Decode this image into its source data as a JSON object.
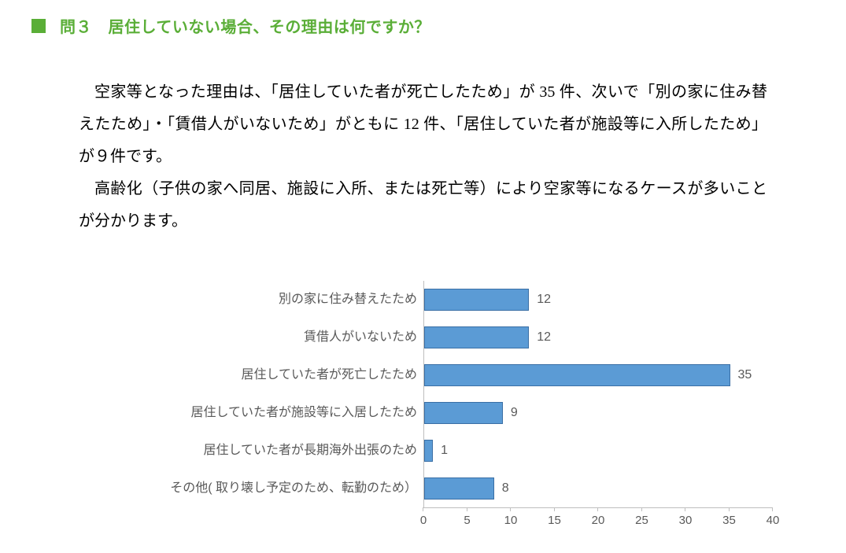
{
  "accent_color": "#5aae37",
  "heading": {
    "square_color": "#5aae37",
    "question_no": "問３",
    "question_text": "居住していない場合、その理由は何ですか？"
  },
  "body": {
    "p1": "空家等となった理由は、「居住していた者が死亡したため」が 35 件、次いで「別の家に住み替えたため」・「賃借人がいないため」がともに 12 件、「居住していた者が施設等に入所したため」が９件です。",
    "p2": "高齢化（子供の家へ同居、施設に入所、または死亡等）により空家等になるケースが多いことが分かります。"
  },
  "chart": {
    "type": "bar-horizontal",
    "x_min": 0,
    "x_max": 40,
    "x_tick_step": 5,
    "x_ticks": [
      0,
      5,
      10,
      15,
      20,
      25,
      30,
      35,
      40
    ],
    "bar_fill": "#5b9bd5",
    "bar_border": "#3a6fa5",
    "axis_color": "#bfbfbf",
    "label_color": "#595959",
    "label_fontsize": 16,
    "tick_fontsize": 15,
    "items": [
      {
        "label": "別の家に住み替えたため",
        "value": 12
      },
      {
        "label": "賃借人がいないため",
        "value": 12
      },
      {
        "label": "居住していた者が死亡したため",
        "value": 35
      },
      {
        "label": "居住していた者が施設等に入居したため",
        "value": 9
      },
      {
        "label": "居住していた者が長期海外出張のため",
        "value": 1
      },
      {
        "label": "その他( 取り壊し予定のため、転勤のため）",
        "value": 8
      }
    ]
  }
}
